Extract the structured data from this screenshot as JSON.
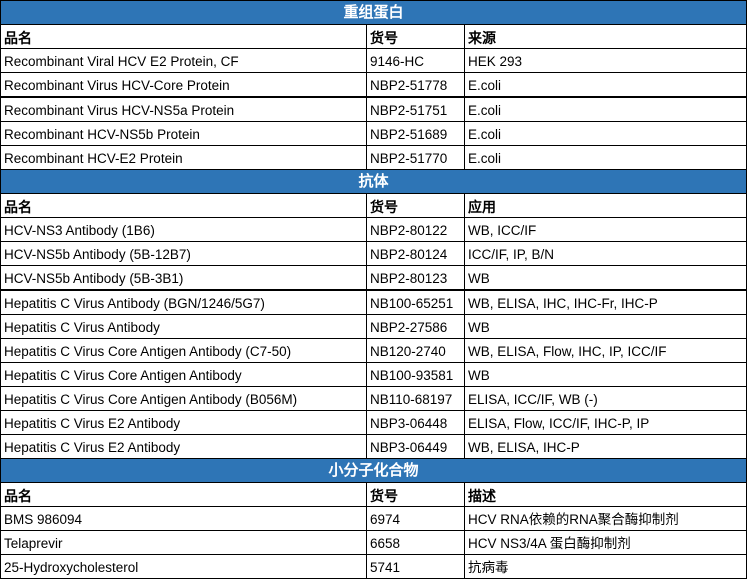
{
  "sections": [
    {
      "title": "重组蛋白",
      "headers": [
        "品名",
        "货号",
        "来源"
      ],
      "rows": [
        [
          "Recombinant Viral HCV E2 Protein, CF",
          "9146-HC",
          "HEK 293"
        ],
        [
          "Recombinant Virus HCV-Core Protein",
          "NBP2-51778",
          "E.coli"
        ],
        [
          "Recombinant Virus HCV-NS5a Protein",
          "NBP2-51751",
          "E.coli"
        ],
        [
          "Recombinant HCV-NS5b Protein",
          "NBP2-51689",
          "E.coli"
        ],
        [
          "Recombinant HCV-E2 Protein",
          "NBP2-51770",
          "E.coli"
        ]
      ]
    },
    {
      "title": "抗体",
      "headers": [
        "品名",
        "货号",
        "应用"
      ],
      "rows": [
        [
          "HCV-NS3 Antibody (1B6)",
          "NBP2-80122",
          "WB, ICC/IF"
        ],
        [
          "HCV-NS5b Antibody (5B-12B7)",
          "NBP2-80124",
          "ICC/IF, IP, B/N"
        ],
        [
          "HCV-NS5b Antibody (5B-3B1)",
          "NBP2-80123",
          "WB"
        ],
        [
          "Hepatitis C Virus Antibody (BGN/1246/5G7)",
          "NB100-65251",
          "WB, ELISA, IHC, IHC-Fr, IHC-P"
        ],
        [
          "Hepatitis C Virus Antibody",
          "NBP2-27586",
          "WB"
        ],
        [
          "Hepatitis C Virus Core Antigen Antibody (C7-50)",
          "NB120-2740",
          "WB, ELISA, Flow, IHC, IP, ICC/IF"
        ],
        [
          "Hepatitis C Virus Core Antigen Antibody",
          "NB100-93581",
          "WB"
        ],
        [
          "Hepatitis C Virus Core Antigen Antibody (B056M)",
          "NB110-68197",
          "ELISA, ICC/IF, WB (-)"
        ],
        [
          "Hepatitis C Virus E2 Antibody",
          "NBP3-06448",
          "ELISA, Flow, ICC/IF, IHC-P, IP"
        ],
        [
          "Hepatitis C Virus E2 Antibody",
          "NBP3-06449",
          "WB, ELISA, IHC-P"
        ]
      ]
    },
    {
      "title": "小分子化合物",
      "headers": [
        "品名",
        "货号",
        "描述"
      ],
      "rows": [
        [
          "BMS 986094",
          "6974",
          "HCV RNA依赖的RNA聚合酶抑制剂"
        ],
        [
          "Telaprevir",
          "6658",
          "HCV NS3/4A 蛋白酶抑制剂"
        ],
        [
          "25-Hydroxycholesterol",
          "5741",
          "抗病毒"
        ]
      ]
    }
  ],
  "colors": {
    "section_header_bg": "#2E75B6",
    "section_header_text": "#FFFFFF"
  }
}
